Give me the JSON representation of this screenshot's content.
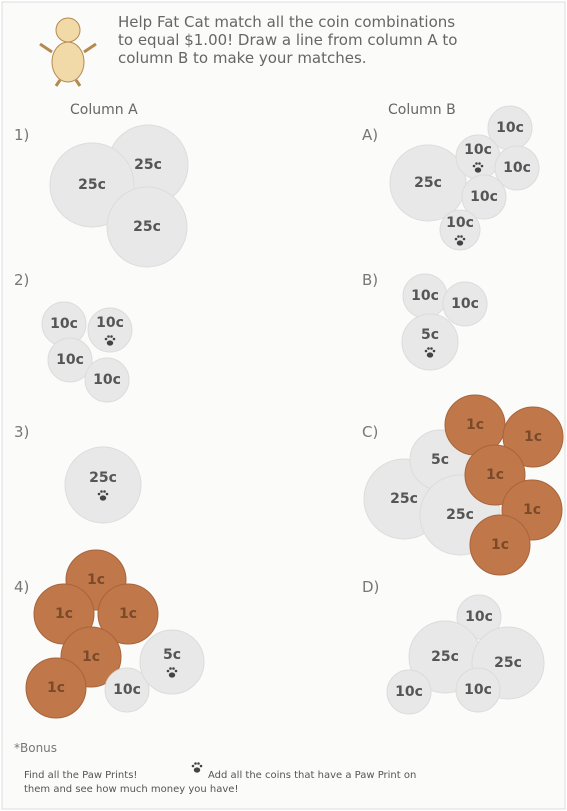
{
  "header": {
    "lines": [
      "Help Fat Cat match all the coin combinations",
      "to equal $1.00! Draw a line from column A to",
      "column B to make your matches."
    ]
  },
  "columns": [
    "Column A",
    "Column B"
  ],
  "column_a": [
    {
      "label": "1)",
      "coins": [
        "25c",
        "25c",
        "25c"
      ]
    },
    {
      "label": "2)",
      "coins": [
        "10c",
        "10c",
        "10c",
        "10c"
      ]
    },
    {
      "label": "3)",
      "coins": [
        "25c"
      ]
    },
    {
      "label": "4)",
      "coins": [
        "1c",
        "1c",
        "1c",
        "1c",
        "1c",
        "10c",
        "5c"
      ]
    }
  ],
  "column_b": [
    {
      "label": "A)",
      "coins": [
        "10c",
        "25c",
        "10c",
        "10c",
        "10c",
        "10c"
      ]
    },
    {
      "label": "B)",
      "coins": [
        "10c",
        "10c",
        "5c"
      ]
    },
    {
      "label": "C)",
      "coins": [
        "25c",
        "5c",
        "25c",
        "1c",
        "1c",
        "1c",
        "1c",
        "1c"
      ]
    },
    {
      "label": "D)",
      "coins": [
        "10c",
        "25c",
        "25c",
        "10c",
        "10c"
      ]
    }
  ],
  "bonus": {
    "title": "*Bonus",
    "before_icon": "Find all the Paw Prints!",
    "after_icon": "Add all the coins that have a Paw Print on",
    "last_line": "them and see how much money you have!"
  }
}
